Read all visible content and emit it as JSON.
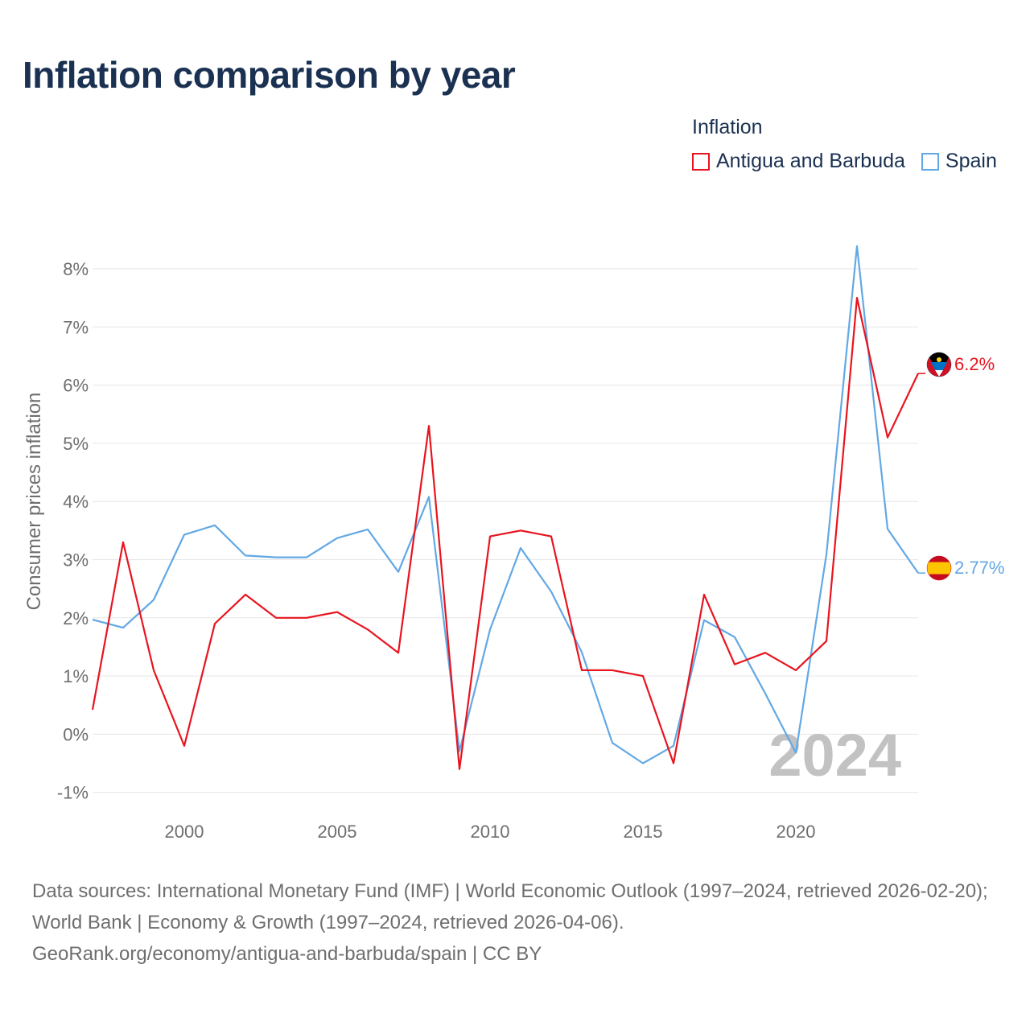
{
  "header": {
    "title": "Inflation comparison by year"
  },
  "legend": {
    "title": "Inflation",
    "items": [
      {
        "label": "Antigua and Barbuda",
        "color": "#e8141f"
      },
      {
        "label": "Spain",
        "color": "#62a8e5"
      }
    ]
  },
  "chart_data": {
    "type": "line",
    "title": "Inflation comparison by year",
    "xlabel": "",
    "ylabel": "Consumer prices inflation",
    "xlim": [
      1997,
      2024
    ],
    "ylim": [
      -1.35,
      8.65
    ],
    "x_ticks": [
      2000,
      2005,
      2010,
      2015,
      2020
    ],
    "y_ticks": [
      -1,
      0,
      1,
      2,
      3,
      4,
      5,
      6,
      7,
      8
    ],
    "y_tick_suffix": "%",
    "grid": true,
    "legend_position": "top-right",
    "watermark_year": "2024",
    "x": [
      1997,
      1998,
      1999,
      2000,
      2001,
      2002,
      2003,
      2004,
      2005,
      2006,
      2007,
      2008,
      2009,
      2010,
      2011,
      2012,
      2013,
      2014,
      2015,
      2016,
      2017,
      2018,
      2019,
      2020,
      2021,
      2022,
      2023,
      2024
    ],
    "series": [
      {
        "name": "Antigua and Barbuda",
        "color": "#e8141f",
        "end_label": "6.2%",
        "flag": "antigua-and-barbuda-flag-icon",
        "values": [
          0.42,
          3.3,
          1.1,
          -0.2,
          1.9,
          2.4,
          2.0,
          2.0,
          2.1,
          1.8,
          1.4,
          5.3,
          -0.6,
          3.4,
          3.5,
          3.4,
          1.1,
          1.1,
          1.0,
          -0.5,
          2.4,
          1.2,
          1.4,
          1.1,
          1.6,
          7.5,
          5.1,
          6.2
        ]
      },
      {
        "name": "Spain",
        "color": "#62a8e5",
        "end_label": "2.77%",
        "flag": "spain-flag-icon",
        "values": [
          1.97,
          1.83,
          2.31,
          3.43,
          3.59,
          3.07,
          3.04,
          3.04,
          3.37,
          3.52,
          2.79,
          4.08,
          -0.29,
          1.8,
          3.2,
          2.45,
          1.41,
          -0.15,
          -0.5,
          -0.2,
          1.96,
          1.67,
          0.7,
          -0.32,
          3.09,
          8.39,
          3.53,
          2.77
        ]
      }
    ]
  },
  "footer": {
    "source_line1": "Data sources: International Monetary Fund (IMF) | World Economic Outlook (1997–2024, retrieved 2026-02-20); World Bank | Economy & Growth (1997–2024, retrieved 2026-04-06).",
    "source_line2": "GeoRank.org/economy/antigua-and-barbuda/spain | CC BY"
  }
}
